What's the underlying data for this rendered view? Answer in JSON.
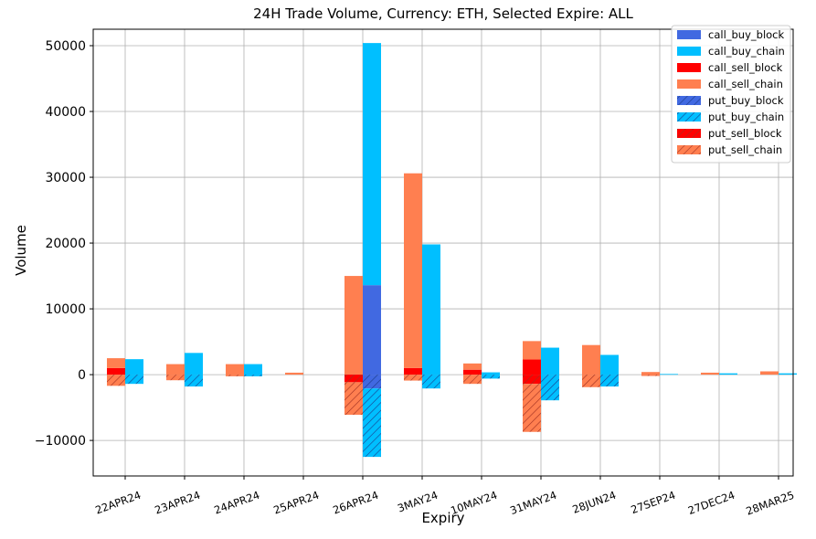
{
  "chart_data": {
    "type": "bar",
    "title": "24H Trade Volume, Currency: ETH, Selected Expire: ALL",
    "xlabel": "Expiry",
    "ylabel": "Volume",
    "ylim": [
      -15400,
      52500
    ],
    "yticks": [
      -10000,
      0,
      10000,
      20000,
      30000,
      40000,
      50000
    ],
    "ytick_labels": [
      "−10000",
      "0",
      "10000",
      "20000",
      "30000",
      "40000",
      "50000"
    ],
    "grid": true,
    "legend_position": "top-right",
    "categories": [
      "22APR24",
      "23APR24",
      "24APR24",
      "25APR24",
      "26APR24",
      "3MAY24",
      "10MAY24",
      "31MAY24",
      "28JUN24",
      "27SEP24",
      "27DEC24",
      "28MAR25"
    ],
    "series": [
      {
        "name": "call_buy_block",
        "color": "#4169E1",
        "side": "buy",
        "hatch": false,
        "values": [
          0,
          0,
          0,
          0,
          13600,
          0,
          0,
          0,
          0,
          0,
          0,
          0
        ]
      },
      {
        "name": "call_buy_chain",
        "color": "#00BFFF",
        "side": "buy",
        "hatch": false,
        "values": [
          2350,
          3300,
          1600,
          0,
          36800,
          19800,
          350,
          4100,
          3000,
          100,
          200,
          200
        ]
      },
      {
        "name": "call_sell_block",
        "color": "#FF0000",
        "side": "sell",
        "hatch": false,
        "values": [
          1000,
          0,
          0,
          0,
          0,
          1000,
          750,
          2300,
          0,
          0,
          0,
          0
        ]
      },
      {
        "name": "call_sell_chain",
        "color": "#FF7F50",
        "side": "sell",
        "hatch": false,
        "values": [
          1500,
          1600,
          1600,
          300,
          15000,
          29600,
          950,
          2800,
          4500,
          400,
          300,
          500
        ]
      },
      {
        "name": "put_buy_block",
        "color": "#4169E1",
        "side": "buy",
        "hatch": true,
        "values": [
          0,
          0,
          0,
          0,
          -2100,
          0,
          0,
          0,
          0,
          0,
          0,
          0
        ]
      },
      {
        "name": "put_buy_chain",
        "color": "#00BFFF",
        "side": "buy",
        "hatch": true,
        "values": [
          -1400,
          -1800,
          -250,
          0,
          -10400,
          -2100,
          -600,
          -3900,
          -1800,
          0,
          0,
          0
        ]
      },
      {
        "name": "put_sell_block",
        "color": "#FF0000",
        "side": "sell",
        "hatch": true,
        "values": [
          0,
          0,
          0,
          0,
          -1150,
          0,
          0,
          -1400,
          0,
          0,
          0,
          0
        ]
      },
      {
        "name": "put_sell_chain",
        "color": "#FF7F50",
        "side": "sell",
        "hatch": true,
        "values": [
          -1700,
          -850,
          -250,
          0,
          -4950,
          -900,
          -1400,
          -7300,
          -1900,
          -200,
          0,
          0
        ]
      }
    ]
  }
}
